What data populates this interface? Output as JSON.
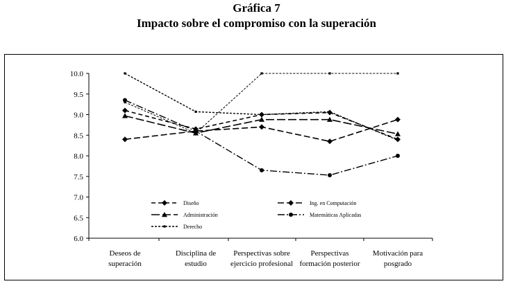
{
  "header": {
    "label": "Gráfica 7",
    "title": "Impacto sobre el compromiso con la superación"
  },
  "chart_data": {
    "type": "line",
    "title": "Impacto sobre el compromiso con la superación",
    "categories": [
      [
        "Deseos de",
        "superación"
      ],
      [
        "Disciplina de",
        "estudio"
      ],
      [
        "Perspectivas sobre",
        "ejercicio profesional"
      ],
      [
        "Perspectivas",
        "formación posterior"
      ],
      [
        "Motivación para",
        "posgrado"
      ]
    ],
    "ylim": [
      6.0,
      10.0
    ],
    "yticks": [
      "10.0",
      "9.5",
      "9.0",
      "8.5",
      "8.0",
      "7.5",
      "7.0",
      "6.5",
      "6.0"
    ],
    "grid": false,
    "legend_position": "bottom-inside",
    "series": [
      {
        "name": "Diseño",
        "values": [
          9.1,
          8.65,
          9.0,
          9.05,
          8.4
        ],
        "marker": "diamond",
        "dash": "6,4",
        "width": 1.6
      },
      {
        "name": "Ing. en Computación",
        "values": [
          8.4,
          8.6,
          8.7,
          8.35,
          8.88
        ],
        "marker": "diamond",
        "dash": "9,4",
        "width": 1.6
      },
      {
        "name": "Administración",
        "values": [
          8.97,
          8.55,
          8.88,
          8.88,
          8.53
        ],
        "marker": "triangle",
        "dash": "12,4",
        "width": 1.6
      },
      {
        "name": "Matemáticas Aplicadas",
        "values": [
          9.35,
          8.6,
          7.65,
          7.53,
          8.0
        ],
        "marker": "circle",
        "dash": "10,3,2,3",
        "width": 1.4
      },
      {
        "name": "Derecho",
        "values": [
          10.0,
          9.07,
          9.0,
          9.07,
          8.38
        ],
        "marker": "square",
        "dash": "3,2",
        "width": 1.4
      },
      {
        "name": "",
        "values": [
          9.3,
          8.55,
          10.0,
          10.0,
          10.0
        ],
        "marker": "square",
        "dash": "3,2",
        "width": 1.0
      }
    ],
    "legend": [
      [
        "Diseño",
        "Ing. en Computación"
      ],
      [
        "Administración",
        "Matemáticas Aplicadas"
      ],
      [
        "Derecho"
      ]
    ]
  }
}
